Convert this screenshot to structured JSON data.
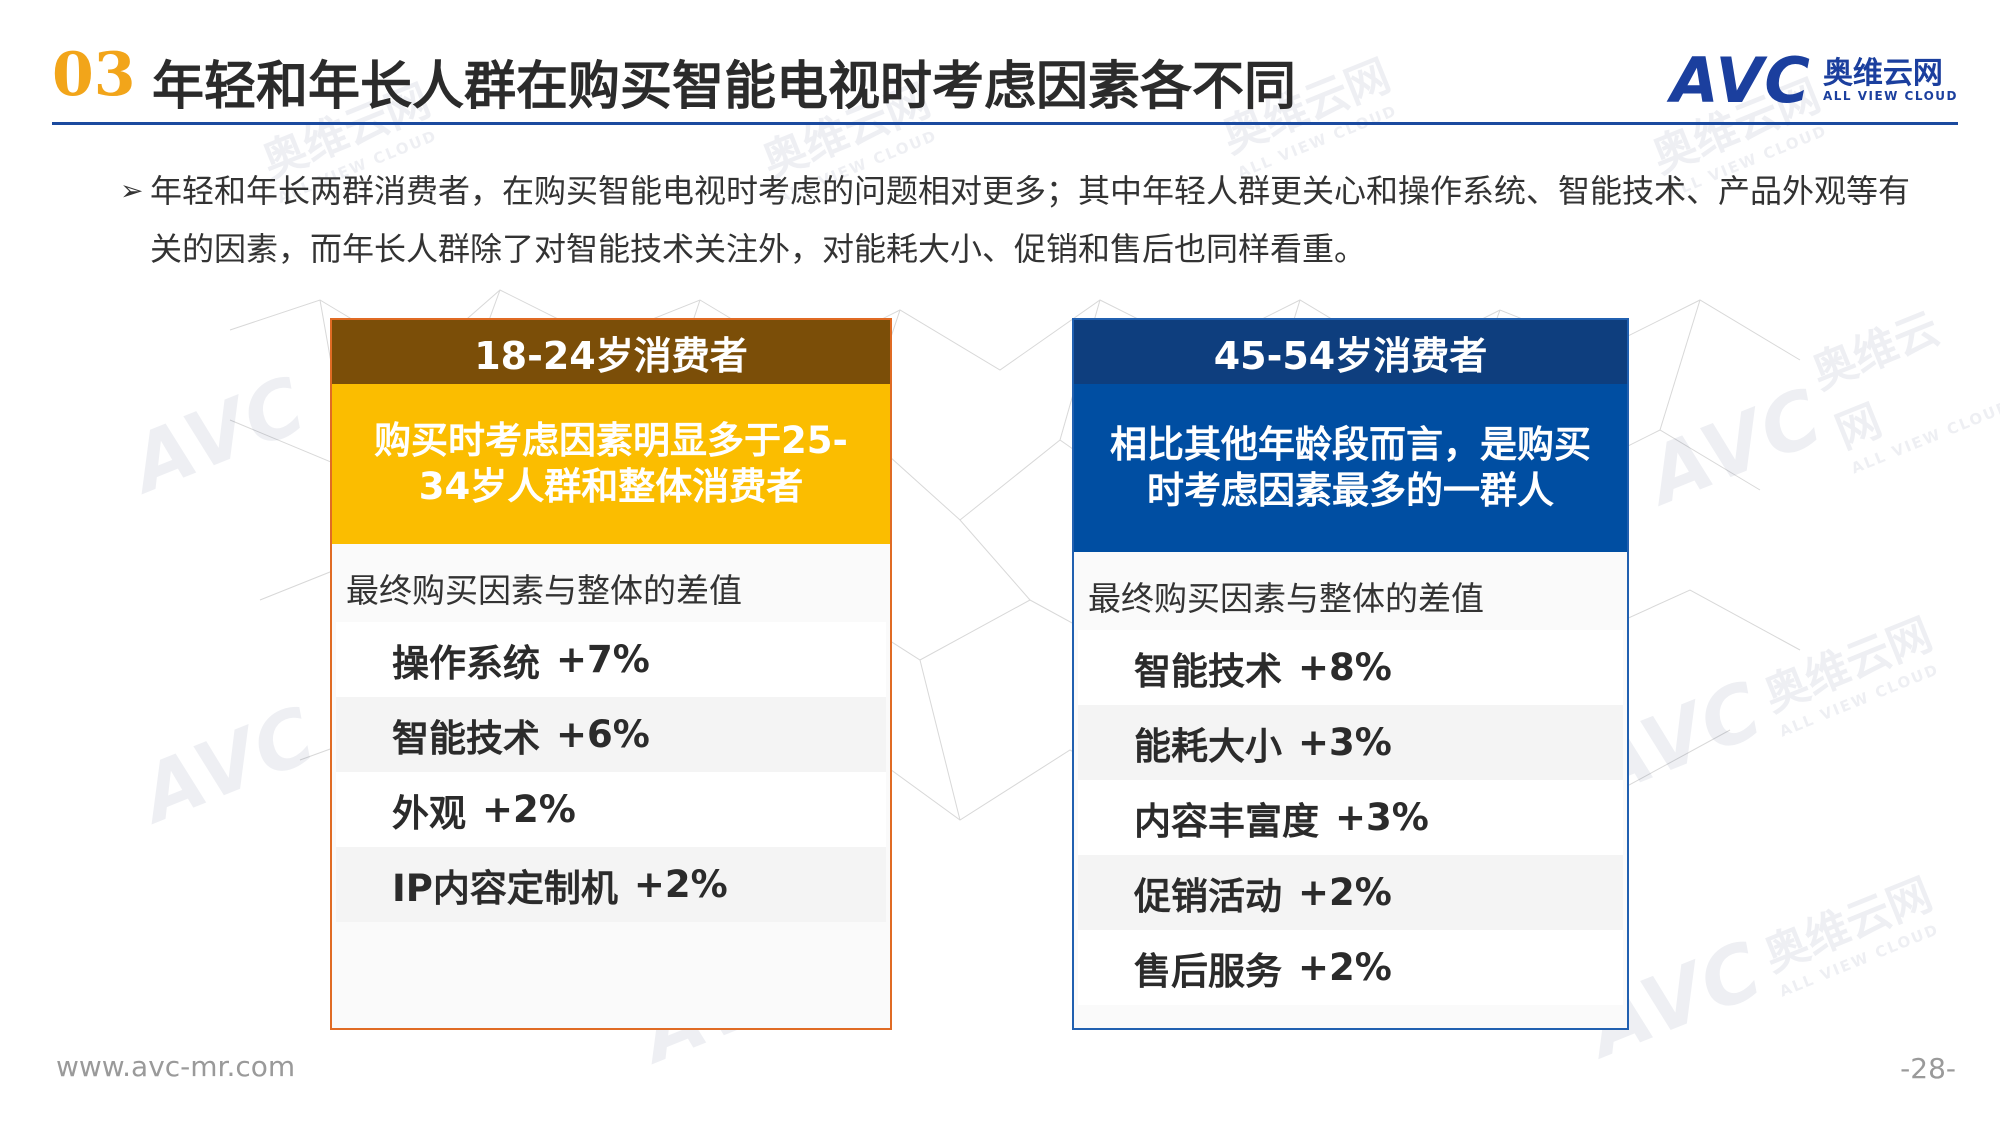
{
  "header": {
    "section_number": "03",
    "title": "年轻和年长人群在购买智能电视时考虑因素各不同",
    "logo": {
      "mark": "AVC",
      "name_cn": "奥维云网",
      "name_en": "ALL VIEW CLOUD"
    }
  },
  "intro": {
    "bullet": "➢",
    "text": "年轻和年长两群消费者，在购买智能电视时考虑的问题相对更多；其中年轻人群更关心和操作系统、智能技术、产品外观等有关的因素，而年长人群除了对智能技术关注外，对能耗大小、促销和售后也同样看重。"
  },
  "cards": [
    {
      "title": "18-24岁消费者",
      "subtitle": "购买时考虑因素明显多于25-34岁人群和整体消费者",
      "diff_label": "最终购买因素与整体的差值",
      "factors": [
        {
          "name": "操作系统",
          "value": "+7%"
        },
        {
          "name": "智能技术",
          "value": "+6%"
        },
        {
          "name": "外观",
          "value": "+2%"
        },
        {
          "name": "IP内容定制机",
          "value": "+2%"
        }
      ]
    },
    {
      "title": "45-54岁消费者",
      "subtitle": "相比其他年龄段而言，是购买时考虑因素最多的一群人",
      "diff_label": "最终购买因素与整体的差值",
      "factors": [
        {
          "name": "智能技术",
          "value": "+8%"
        },
        {
          "name": "能耗大小",
          "value": "+3%"
        },
        {
          "name": "内容丰富度",
          "value": "+3%"
        },
        {
          "name": "促销活动",
          "value": "+2%"
        },
        {
          "name": "售后服务",
          "value": "+2%"
        }
      ]
    }
  ],
  "footer": {
    "url": "www.avc-mr.com",
    "page": "-28-"
  },
  "colors": {
    "accent_orange": "#f2a51a",
    "brand_blue": "#1b4a9f",
    "left_header": "#7b4e08",
    "left_sub": "#fbbd00",
    "right_header": "#0e3e7e",
    "right_sub": "#004ea2"
  }
}
